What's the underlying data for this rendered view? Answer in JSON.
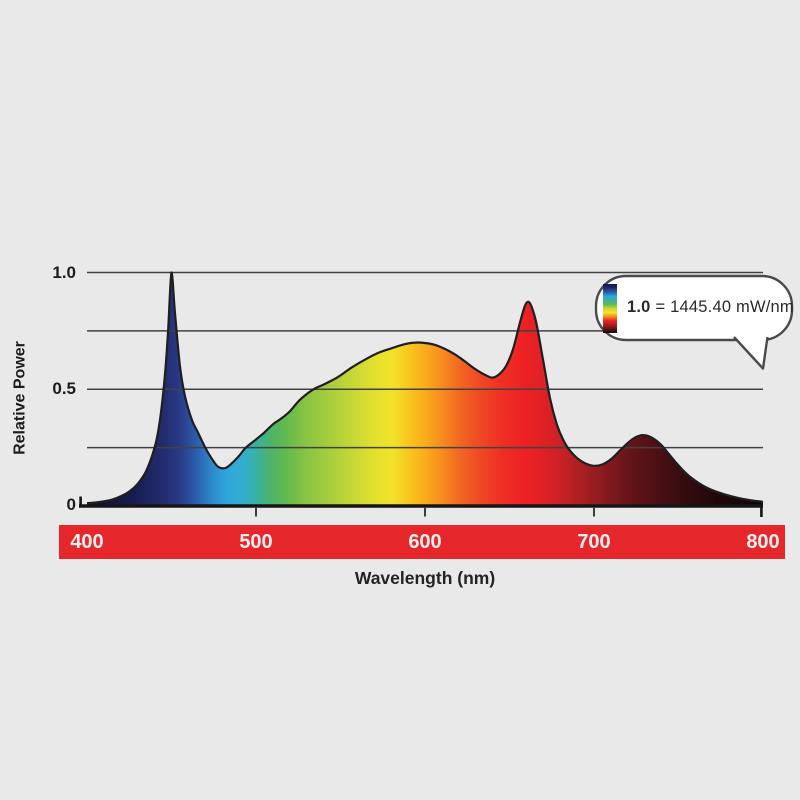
{
  "canvas": {
    "background": "#e9e9e9"
  },
  "chart_data": {
    "type": "area",
    "title": "",
    "xlabel": "Wavelength (nm)",
    "ylabel": "Relative Power",
    "xlim": [
      400,
      800
    ],
    "ylim": [
      0,
      1.0
    ],
    "grid_on": true,
    "gridline_values": [
      0.25,
      0.5,
      0.75,
      1.0
    ],
    "x_ticks": [
      400,
      500,
      600,
      700,
      800
    ],
    "x_tick_labels": [
      "400",
      "500",
      "600",
      "700",
      "800"
    ],
    "y_tick_labels": [
      "1.0",
      "0.5",
      "0"
    ],
    "series": [
      {
        "name": "relative-spectral-power",
        "points": [
          [
            400,
            0.012
          ],
          [
            405,
            0.015
          ],
          [
            410,
            0.02
          ],
          [
            415,
            0.028
          ],
          [
            420,
            0.042
          ],
          [
            425,
            0.062
          ],
          [
            430,
            0.095
          ],
          [
            435,
            0.15
          ],
          [
            440,
            0.25
          ],
          [
            443,
            0.36
          ],
          [
            446,
            0.55
          ],
          [
            448,
            0.75
          ],
          [
            450,
            1.0
          ],
          [
            452,
            0.83
          ],
          [
            455,
            0.6
          ],
          [
            458,
            0.47
          ],
          [
            462,
            0.37
          ],
          [
            466,
            0.31
          ],
          [
            470,
            0.25
          ],
          [
            475,
            0.19
          ],
          [
            478,
            0.166
          ],
          [
            482,
            0.163
          ],
          [
            486,
            0.185
          ],
          [
            490,
            0.215
          ],
          [
            494,
            0.25
          ],
          [
            500,
            0.285
          ],
          [
            505,
            0.315
          ],
          [
            510,
            0.35
          ],
          [
            515,
            0.375
          ],
          [
            520,
            0.405
          ],
          [
            526,
            0.455
          ],
          [
            534,
            0.5
          ],
          [
            540,
            0.52
          ],
          [
            548,
            0.55
          ],
          [
            556,
            0.59
          ],
          [
            564,
            0.625
          ],
          [
            572,
            0.655
          ],
          [
            580,
            0.675
          ],
          [
            588,
            0.693
          ],
          [
            594,
            0.7
          ],
          [
            600,
            0.698
          ],
          [
            606,
            0.69
          ],
          [
            612,
            0.672
          ],
          [
            618,
            0.648
          ],
          [
            624,
            0.617
          ],
          [
            630,
            0.585
          ],
          [
            636,
            0.56
          ],
          [
            640,
            0.55
          ],
          [
            644,
            0.565
          ],
          [
            648,
            0.6
          ],
          [
            652,
            0.67
          ],
          [
            656,
            0.78
          ],
          [
            659,
            0.855
          ],
          [
            661,
            0.875
          ],
          [
            663,
            0.855
          ],
          [
            666,
            0.78
          ],
          [
            670,
            0.62
          ],
          [
            674,
            0.46
          ],
          [
            678,
            0.35
          ],
          [
            682,
            0.28
          ],
          [
            686,
            0.235
          ],
          [
            690,
            0.205
          ],
          [
            695,
            0.182
          ],
          [
            700,
            0.172
          ],
          [
            705,
            0.178
          ],
          [
            710,
            0.2
          ],
          [
            715,
            0.235
          ],
          [
            720,
            0.27
          ],
          [
            724,
            0.292
          ],
          [
            728,
            0.303
          ],
          [
            732,
            0.3
          ],
          [
            736,
            0.285
          ],
          [
            740,
            0.26
          ],
          [
            744,
            0.225
          ],
          [
            748,
            0.19
          ],
          [
            752,
            0.158
          ],
          [
            756,
            0.13
          ],
          [
            760,
            0.108
          ],
          [
            765,
            0.085
          ],
          [
            770,
            0.068
          ],
          [
            775,
            0.055
          ],
          [
            780,
            0.044
          ],
          [
            785,
            0.035
          ],
          [
            790,
            0.028
          ],
          [
            795,
            0.022
          ],
          [
            800,
            0.018
          ]
        ]
      }
    ],
    "spectrum_gradient": [
      {
        "wl": 400,
        "color": "#0c0e24"
      },
      {
        "wl": 430,
        "color": "#191f55"
      },
      {
        "wl": 445,
        "color": "#232c6d"
      },
      {
        "wl": 455,
        "color": "#293a88"
      },
      {
        "wl": 465,
        "color": "#2b5fae"
      },
      {
        "wl": 475,
        "color": "#2c8fcd"
      },
      {
        "wl": 483,
        "color": "#2fa6dc"
      },
      {
        "wl": 492,
        "color": "#33aed0"
      },
      {
        "wl": 500,
        "color": "#37b2a4"
      },
      {
        "wl": 508,
        "color": "#4bb36e"
      },
      {
        "wl": 518,
        "color": "#63ba4d"
      },
      {
        "wl": 530,
        "color": "#8ac443"
      },
      {
        "wl": 545,
        "color": "#abce3c"
      },
      {
        "wl": 558,
        "color": "#c8d836"
      },
      {
        "wl": 570,
        "color": "#e3e02e"
      },
      {
        "wl": 580,
        "color": "#f1e42a"
      },
      {
        "wl": 592,
        "color": "#f9c21d"
      },
      {
        "wl": 600,
        "color": "#f9ad1c"
      },
      {
        "wl": 610,
        "color": "#f68c1e"
      },
      {
        "wl": 620,
        "color": "#f26a22"
      },
      {
        "wl": 632,
        "color": "#ef4a24"
      },
      {
        "wl": 645,
        "color": "#ee3024"
      },
      {
        "wl": 658,
        "color": "#ed2124"
      },
      {
        "wl": 668,
        "color": "#e32126"
      },
      {
        "wl": 680,
        "color": "#cb2127"
      },
      {
        "wl": 692,
        "color": "#ab1f23"
      },
      {
        "wl": 705,
        "color": "#8b1b1f"
      },
      {
        "wl": 720,
        "color": "#68151a"
      },
      {
        "wl": 738,
        "color": "#4a1014"
      },
      {
        "wl": 755,
        "color": "#330c0f"
      },
      {
        "wl": 775,
        "color": "#1d0809"
      },
      {
        "wl": 800,
        "color": "#0e0406"
      }
    ],
    "annotation": {
      "bold": "1.0",
      "rest": "= 1445.40 mW/nm",
      "full": "1.0 = 1445.40 mW/nm"
    },
    "legend_bar_gradient": [
      "#141247",
      "#232c6d",
      "#2b5fae",
      "#2fa6dc",
      "#37b2a4",
      "#63ba4d",
      "#c8d836",
      "#f7e42a",
      "#f68c1e",
      "#ed2124",
      "#a81f23",
      "#5e1317",
      "#150607"
    ],
    "legend_position": "top-right"
  },
  "colors": {
    "axis_band": "#e5262b",
    "band_label": "#fbf0f0",
    "gridline": "#424242",
    "axis_line": "#161616",
    "curve_outline": "#1f1f1f",
    "text": "#1c1c1c",
    "bubble_fill": "#ffffff",
    "bubble_border": "#4a4a4a"
  }
}
